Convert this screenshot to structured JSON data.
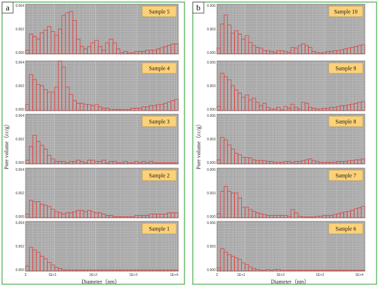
{
  "figure": {
    "panels": [
      {
        "letter": "a",
        "ylabel": "Pore volume（cc/g）",
        "xlabel": "Diameter（nm）",
        "x_ticks": [
          "2",
          "1E+1",
          "1E+2",
          "1E+3",
          "1E+4"
        ]
      },
      {
        "letter": "b",
        "ylabel": "Pore volume（cc/g）",
        "xlabel": "Diameter（nm）",
        "x_ticks": [
          "2",
          "1E+1",
          "1E+2",
          "1E+3",
          "1E+4"
        ]
      }
    ]
  },
  "chart_data": [
    {
      "type": "bar",
      "panel": "a",
      "title": "Sample 5",
      "x": "Diameter (nm), log scale",
      "xlim": [
        2,
        10000
      ],
      "ylim": [
        0,
        0.004
      ],
      "y_ticks": [
        "0.004",
        "0.002",
        "0.000"
      ],
      "values": [
        0.0003,
        0.0016,
        0.0014,
        0.0012,
        0.0017,
        0.0019,
        0.0022,
        0.0018,
        0.0015,
        0.002,
        0.0031,
        0.0033,
        0.0034,
        0.0027,
        0.0012,
        0.0006,
        0.0004,
        0.0006,
        0.0009,
        0.0011,
        0.0006,
        0.0003,
        0.0009,
        0.0012,
        0.0009,
        0.0004,
        0.0001,
        0.0002,
        0.0001,
        0.0001,
        0.0002,
        0.0002,
        0.0002,
        0.0003,
        0.0003,
        0.0003,
        0.0004,
        0.0005,
        0.0006,
        0.0007,
        0.0008,
        0.0008
      ]
    },
    {
      "type": "bar",
      "panel": "a",
      "title": "Sample 4",
      "x": "Diameter (nm), log scale",
      "xlim": [
        2,
        10000
      ],
      "ylim": [
        0,
        0.004
      ],
      "y_ticks": [
        "0.004",
        "0.002",
        "0.000"
      ],
      "values": [
        0.0005,
        0.0029,
        0.0025,
        0.0021,
        0.002,
        0.0017,
        0.0015,
        0.0015,
        0.0019,
        0.004,
        0.0035,
        0.0019,
        0.0013,
        0.0008,
        0.0006,
        0.0006,
        0.0005,
        0.0005,
        0.0004,
        0.0005,
        0.0003,
        0.0002,
        0.0002,
        0.0001,
        0.0001,
        0.0001,
        0.0001,
        0.0001,
        0.0001,
        0.0002,
        0.0002,
        0.0002,
        0.0003,
        0.0003,
        0.0004,
        0.0004,
        0.0005,
        0.0005,
        0.0006,
        0.0007,
        0.0008,
        0.0009
      ]
    },
    {
      "type": "bar",
      "panel": "a",
      "title": "Sample 3",
      "x": "Diameter (nm), log scale",
      "xlim": [
        2,
        10000
      ],
      "ylim": [
        0,
        0.004
      ],
      "y_ticks": [
        "0.004",
        "0.002",
        "0.000"
      ],
      "values": [
        0.0003,
        0.0014,
        0.0023,
        0.0018,
        0.0015,
        0.0012,
        0.0007,
        0.0004,
        0.0002,
        0.0002,
        0.0002,
        0.0001,
        0.0002,
        0.0002,
        0.0003,
        0.0002,
        0.0001,
        0.0003,
        0.0003,
        0.0002,
        0.0002,
        0.0003,
        0.0001,
        0.0002,
        0.0002,
        0.0001,
        0.0001,
        0.0002,
        0.0001,
        0.0001,
        0.0002,
        0.0001,
        0.0002,
        0.0001,
        0.0002,
        0.0001,
        0.0001,
        0.0001,
        0.0001,
        0.0001,
        0.0001,
        0.0001
      ]
    },
    {
      "type": "bar",
      "panel": "a",
      "title": "Sample 2",
      "x": "Diameter (nm), log scale",
      "xlim": [
        2,
        10000
      ],
      "ylim": [
        0,
        0.004
      ],
      "y_ticks": [
        "0.004",
        "0.002",
        "0.000"
      ],
      "values": [
        0.0003,
        0.0014,
        0.0013,
        0.0013,
        0.0011,
        0.001,
        0.0009,
        0.0007,
        0.0005,
        0.0004,
        0.0003,
        0.0004,
        0.0004,
        0.0005,
        0.0006,
        0.0006,
        0.0005,
        0.0006,
        0.0005,
        0.0004,
        0.0004,
        0.0003,
        0.0002,
        0.0002,
        0.0001,
        0.0001,
        0.0001,
        0.0001,
        0.0001,
        0.0001,
        0.0002,
        0.0002,
        0.0002,
        0.0002,
        0.0003,
        0.0003,
        0.0003,
        0.0003,
        0.0003,
        0.0004,
        0.0004,
        0.0004
      ]
    },
    {
      "type": "bar",
      "panel": "a",
      "title": "Sample 1",
      "x": "Diameter (nm), log scale",
      "xlim": [
        2,
        10000
      ],
      "ylim": [
        0,
        0.004
      ],
      "y_ticks": [
        "0.004",
        "0.002",
        "0.000"
      ],
      "values": [
        0.0004,
        0.0019,
        0.0017,
        0.0015,
        0.0012,
        0.001,
        0.0007,
        0.0005,
        0.0003,
        0.0002,
        0.0001,
        0.0001,
        0.0001,
        0.0001,
        0.0001,
        0.0001,
        0.0001,
        0.0001,
        0.0001,
        0.0001,
        0.0001,
        0.0001,
        0.0001,
        0.0001,
        0.0001,
        0.0001,
        0.0001,
        0.0001,
        0.0001,
        0.0001,
        0.0001,
        0.0001,
        0.0001,
        0.0001,
        0.0001,
        0.0001,
        0.0001,
        0.0001,
        0.0001,
        0.0001,
        0.0001,
        0.0001
      ]
    },
    {
      "type": "bar",
      "panel": "b",
      "title": "Sample 10",
      "x": "Diameter (nm), log scale",
      "xlim": [
        2,
        10000
      ],
      "ylim": [
        0,
        0.006
      ],
      "y_ticks": [
        "0.006",
        "0.003",
        "0.000"
      ],
      "values": [
        0.0007,
        0.0036,
        0.0047,
        0.0035,
        0.0025,
        0.0028,
        0.0024,
        0.0018,
        0.0022,
        0.0014,
        0.001,
        0.0008,
        0.0007,
        0.0004,
        0.0004,
        0.0003,
        0.0002,
        0.0004,
        0.0004,
        0.0003,
        0.0002,
        0.0008,
        0.0007,
        0.001,
        0.0012,
        0.001,
        0.0008,
        0.0003,
        0.0002,
        0.0001,
        0.0002,
        0.0003,
        0.0003,
        0.0004,
        0.0004,
        0.0005,
        0.0006,
        0.0007,
        0.0008,
        0.0009,
        0.001,
        0.0011
      ]
    },
    {
      "type": "bar",
      "panel": "b",
      "title": "Sample 9",
      "x": "Diameter (nm), log scale",
      "xlim": [
        2,
        10000
      ],
      "ylim": [
        0,
        0.006
      ],
      "y_ticks": [
        "0.006",
        "0.003",
        "0.000"
      ],
      "values": [
        0.0005,
        0.0045,
        0.0041,
        0.0037,
        0.003,
        0.0025,
        0.0021,
        0.0016,
        0.0019,
        0.0013,
        0.0015,
        0.001,
        0.0006,
        0.0009,
        0.0004,
        0.0002,
        0.0002,
        0.0004,
        0.0001,
        0.0005,
        0.0003,
        0.0008,
        0.0004,
        0.0002,
        0.001,
        0.0009,
        0.0004,
        0.0003,
        0.0002,
        0.0002,
        0.0003,
        0.0003,
        0.0004,
        0.0004,
        0.0005,
        0.0006,
        0.0006,
        0.0007,
        0.0008,
        0.0009,
        0.001,
        0.0011
      ]
    },
    {
      "type": "bar",
      "panel": "b",
      "title": "Sample 8",
      "x": "Diameter (nm), log scale",
      "xlim": [
        2,
        10000
      ],
      "ylim": [
        0,
        0.006
      ],
      "y_ticks": [
        "0.006",
        "0.003",
        "0.000"
      ],
      "values": [
        0.0005,
        0.0032,
        0.0029,
        0.0023,
        0.0018,
        0.0013,
        0.0011,
        0.0008,
        0.0008,
        0.0007,
        0.0005,
        0.0004,
        0.0004,
        0.0004,
        0.0003,
        0.0003,
        0.0002,
        0.0002,
        0.0002,
        0.0003,
        0.0003,
        0.0002,
        0.0003,
        0.0003,
        0.0004,
        0.0005,
        0.0006,
        0.0004,
        0.0003,
        0.0002,
        0.0002,
        0.0002,
        0.0002,
        0.0002,
        0.0003,
        0.0003,
        0.0003,
        0.0004,
        0.0004,
        0.0005,
        0.0005,
        0.0006
      ]
    },
    {
      "type": "bar",
      "panel": "b",
      "title": "Sample 7",
      "x": "Diameter (nm), log scale",
      "xlim": [
        2,
        10000
      ],
      "ylim": [
        0,
        0.006
      ],
      "y_ticks": [
        "0.006",
        "0.003",
        "0.000"
      ],
      "values": [
        0.0005,
        0.0032,
        0.0038,
        0.0032,
        0.003,
        0.003,
        0.0024,
        0.0013,
        0.0013,
        0.001,
        0.0008,
        0.0006,
        0.0005,
        0.0004,
        0.0003,
        0.0003,
        0.0003,
        0.0003,
        0.0003,
        0.0003,
        0.0002,
        0.001,
        0.0006,
        0.0002,
        0.0001,
        0.0001,
        0.0001,
        0.0001,
        0.0002,
        0.0002,
        0.0003,
        0.0003,
        0.0003,
        0.0004,
        0.0005,
        0.0006,
        0.0007,
        0.0008,
        0.0009,
        0.0011,
        0.0012,
        0.0014
      ]
    },
    {
      "type": "bar",
      "panel": "b",
      "title": "Sample 6",
      "x": "Diameter (nm), log scale",
      "xlim": [
        2,
        10000
      ],
      "ylim": [
        0,
        0.006
      ],
      "y_ticks": [
        "0.006",
        "0.003",
        "0.000"
      ],
      "values": [
        0.0004,
        0.0027,
        0.0023,
        0.002,
        0.0018,
        0.0016,
        0.0014,
        0.001,
        0.0008,
        0.0005,
        0.0003,
        0.0002,
        0.0001,
        0.0001,
        0.0002,
        0.0001,
        0.0002,
        0.0002,
        0.0001,
        0.0001,
        0.0001,
        0.0001,
        0.0001,
        0.0001,
        0.0001,
        0.0001,
        0.0001,
        0.0001,
        0.0001,
        0.0001,
        0.0001,
        0.0001,
        0.0001,
        0.0001,
        0.0001,
        0.0001,
        0.0001,
        0.0001,
        0.0001,
        0.0001,
        0.0001,
        0.0001
      ]
    }
  ],
  "colors": {
    "bar_edge": "#e83030",
    "bar_fill": "#ffffff",
    "plot_bg": "#a9a9a9",
    "grid": "#cccccc",
    "label_box": "#fbd27a",
    "frame": "#1f9a1f"
  }
}
